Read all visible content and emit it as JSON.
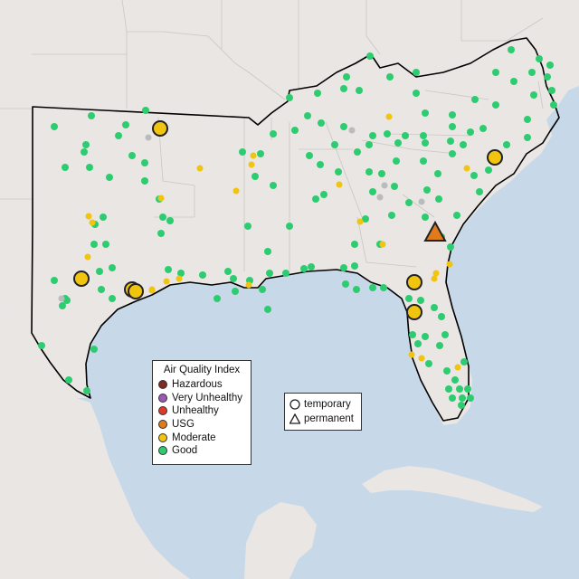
{
  "legend": {
    "title": "Air Quality Index",
    "categories": [
      {
        "label": "Hazardous",
        "color": "#7e2a25"
      },
      {
        "label": "Very Unhealthy",
        "color": "#9b59b6"
      },
      {
        "label": "Unhealthy",
        "color": "#e0392b"
      },
      {
        "label": "USG",
        "color": "#e07b1c"
      },
      {
        "label": "Moderate",
        "color": "#f1c40f"
      },
      {
        "label": "Good",
        "color": "#2ecc71"
      }
    ]
  },
  "monitor_type_legend": {
    "temporary_label": "temporary",
    "permanent_label": "permanent"
  },
  "colors": {
    "water": "#c7d8e8",
    "land": "#e9e6e3",
    "unselected_land": "#ece9e6",
    "no_data": "#b9bbbd",
    "good": "#2ecc71",
    "moderate": "#f1c40f",
    "usg": "#e07b1c"
  }
}
